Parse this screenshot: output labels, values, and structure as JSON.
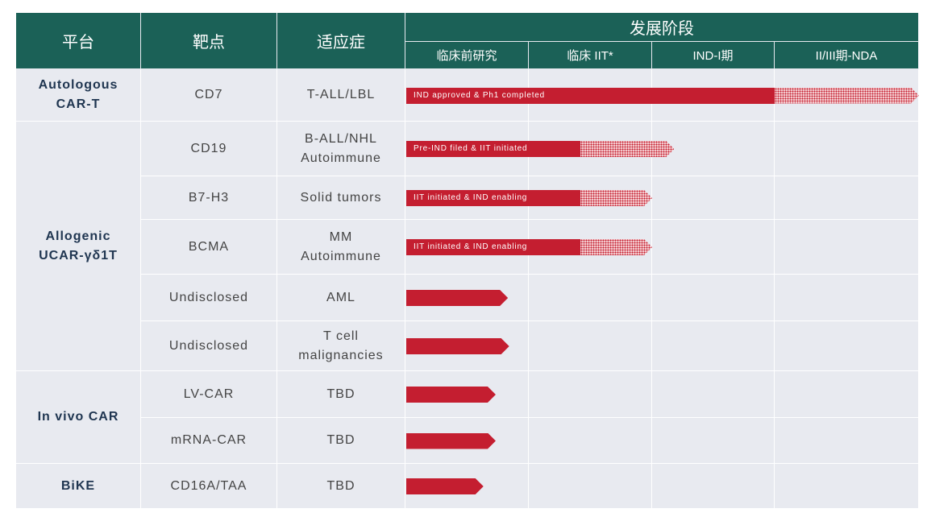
{
  "header": {
    "platform": "平台",
    "target": "靶点",
    "indication": "适应症",
    "stage_group": "发展阶段",
    "stages": [
      "临床前研究",
      "临床 IIT*",
      "IND-I期",
      "II/III期-NDA"
    ]
  },
  "platforms": [
    {
      "name": "Autologous\nCAR-T"
    },
    {
      "name": "Allogenic\nUCAR-γδ1T"
    },
    {
      "name": "In vivo CAR"
    },
    {
      "name": "BiKE"
    }
  ],
  "rows": [
    {
      "target": "CD7",
      "indication": "T-ALL/LBL",
      "label": "IND approved & Ph1 completed",
      "solid_stage": 3.0,
      "end_stage": 4.0
    },
    {
      "target": "CD19",
      "indication": "B-ALL/NHL\nAutoimmune",
      "label": "Pre-IND filed & IIT initiated",
      "solid_stage": 1.42,
      "end_stage": 2.18
    },
    {
      "target": "B7-H3",
      "indication": "Solid tumors",
      "label": "IIT initiated & IND enabling",
      "solid_stage": 1.42,
      "end_stage": 2.0
    },
    {
      "target": "BCMA",
      "indication": "MM\nAutoimmune",
      "label": "IIT initiated & IND enabling",
      "solid_stage": 1.42,
      "end_stage": 2.0
    },
    {
      "target": "Undisclosed",
      "indication": "AML",
      "label": "",
      "solid_stage": 0.83,
      "end_stage": 0.83
    },
    {
      "target": "Undisclosed",
      "indication": "T cell\nmalignancies",
      "label": "",
      "solid_stage": 0.84,
      "end_stage": 0.84
    },
    {
      "target": "LV-CAR",
      "indication": "TBD",
      "label": "",
      "solid_stage": 0.73,
      "end_stage": 0.73
    },
    {
      "target": "mRNA-CAR",
      "indication": "TBD",
      "label": "",
      "solid_stage": 0.73,
      "end_stage": 0.73
    },
    {
      "target": "CD16A/TAA",
      "indication": "TBD",
      "label": "",
      "solid_stage": 0.63,
      "end_stage": 0.63
    }
  ],
  "colors": {
    "header": "#1b6157",
    "bar": "#c41e30",
    "cell": "#e8eaf0"
  }
}
